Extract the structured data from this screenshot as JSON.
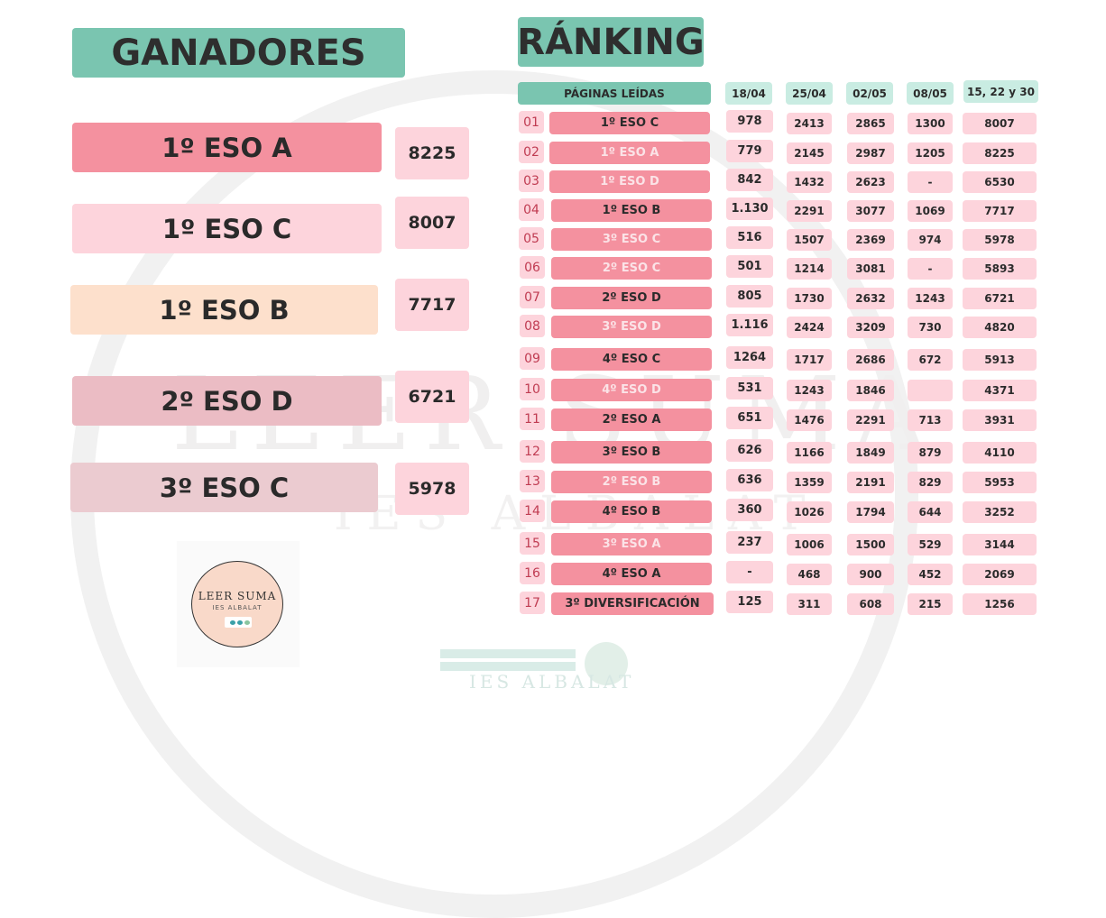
{
  "titles": {
    "ganadores": "GANADORES",
    "ranking": "RÁNKING"
  },
  "winners": [
    {
      "name": "1º ESO A",
      "value": "8225"
    },
    {
      "name": "1º ESO C",
      "value": "8007"
    },
    {
      "name": "1º ESO B",
      "value": "7717"
    },
    {
      "name": "2º ESO D",
      "value": "6721"
    },
    {
      "name": "3º ESO C",
      "value": "5978"
    }
  ],
  "headers": {
    "label": "PÁGINAS LEÍDAS",
    "dates": [
      "18/04",
      "25/04",
      "02/05",
      "08/05",
      "15, 22 y 30"
    ]
  },
  "rows": [
    {
      "pos": "01",
      "cls": "1º ESO C",
      "v": [
        "978",
        "2413",
        "2865",
        "1300",
        "8007"
      ]
    },
    {
      "pos": "02",
      "cls": "1º ESO A",
      "v": [
        "779",
        "2145",
        "2987",
        "1205",
        "8225"
      ]
    },
    {
      "pos": "03",
      "cls": "1º ESO D",
      "v": [
        "842",
        "1432",
        "2623",
        "-",
        "6530"
      ]
    },
    {
      "pos": "04",
      "cls": "1º ESO B",
      "v": [
        "1.130",
        "2291",
        "3077",
        "1069",
        "7717"
      ]
    },
    {
      "pos": "05",
      "cls": "3º ESO C",
      "v": [
        "516",
        "1507",
        "2369",
        "974",
        "5978"
      ]
    },
    {
      "pos": "06",
      "cls": "2º ESO C",
      "v": [
        "501",
        "1214",
        "3081",
        "-",
        "5893"
      ]
    },
    {
      "pos": "07",
      "cls": "2º ESO D",
      "v": [
        "805",
        "1730",
        "2632",
        "1243",
        "6721"
      ]
    },
    {
      "pos": "08",
      "cls": "3º ESO D",
      "v": [
        "1.116",
        "2424",
        "3209",
        "730",
        "4820"
      ]
    },
    {
      "pos": "09",
      "cls": "4º ESO C",
      "v": [
        "1264",
        "1717",
        "2686",
        "672",
        "5913"
      ]
    },
    {
      "pos": "10",
      "cls": "4º ESO D",
      "v": [
        "531",
        "1243",
        "1846",
        "",
        "4371"
      ]
    },
    {
      "pos": "11",
      "cls": "2º ESO A",
      "v": [
        "651",
        "1476",
        "2291",
        "713",
        "3931"
      ]
    },
    {
      "pos": "12",
      "cls": "3º ESO B",
      "v": [
        "626",
        "1166",
        "1849",
        "879",
        "4110"
      ]
    },
    {
      "pos": "13",
      "cls": "2º ESO B",
      "v": [
        "636",
        "1359",
        "2191",
        "829",
        "5953"
      ]
    },
    {
      "pos": "14",
      "cls": "4º ESO B",
      "v": [
        "360",
        "1026",
        "1794",
        "644",
        "3252"
      ]
    },
    {
      "pos": "15",
      "cls": "3º ESO A",
      "v": [
        "237",
        "1006",
        "1500",
        "529",
        "3144"
      ]
    },
    {
      "pos": "16",
      "cls": "4º ESO A",
      "v": [
        "-",
        "468",
        "900",
        "452",
        "2069"
      ]
    },
    {
      "pos": "17",
      "cls": "3º DIVERSIFICACIÓN",
      "v": [
        "125",
        "311",
        "608",
        "215",
        "1256"
      ]
    }
  ],
  "logo": {
    "title": "LEER SUMA",
    "subtitle": "IES ALBALAT"
  },
  "watermark": {
    "title": "LEER SUMA",
    "subtitle": "IES ALBALAT",
    "bottom": "IES ALBALAT"
  },
  "colors": {
    "accent": "#7ac5b0",
    "row_pink": "#f4919f",
    "cell_pink": "#fdd4dc",
    "winner_1": "#f4919f",
    "winner_2": "#fdd4dc",
    "winner_3": "#fde0cc",
    "winner_4": "#ebbcc4",
    "winner_5": "#ebcbd0",
    "header_mint": "#c9ece2"
  }
}
